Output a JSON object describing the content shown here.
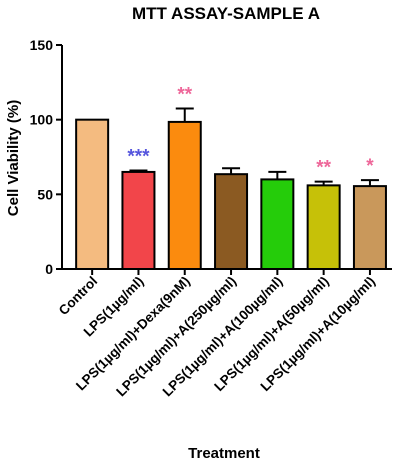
{
  "chart_data": {
    "type": "bar",
    "title": "MTT ASSAY-SAMPLE A",
    "xlabel": "Treatment",
    "ylabel": "Cell Viability (%)",
    "ylim": [
      0,
      150
    ],
    "yticks": [
      0,
      50,
      100,
      150
    ],
    "grid": false,
    "categories": [
      "Control",
      "LPS(1µg/ml)",
      "LPS(1µg/ml)+Dexa(9nM)",
      "LPS(1µg/ml)+A(250µg/ml)",
      "LPS(1µg/ml)+A(100µg/ml)",
      "LPS(1µg/ml)+A(50µg/ml)",
      "LPS(1µg/ml)+A(10µg/ml)"
    ],
    "values": [
      100,
      65,
      98.5,
      63.5,
      60,
      56,
      55.5
    ],
    "errors": [
      0,
      1,
      9,
      4,
      5,
      2.5,
      4
    ],
    "colors": [
      "#f4bb80",
      "#f2454a",
      "#fb8b0e",
      "#8b5a22",
      "#25cc0a",
      "#c6c108",
      "#c9985b"
    ],
    "significance": [
      "",
      "***",
      "**",
      "",
      "",
      "**",
      "*"
    ],
    "significance_colors": [
      "",
      "#5555dd",
      "#ee6699",
      "",
      "",
      "#ee6699",
      "#ee6699"
    ]
  }
}
